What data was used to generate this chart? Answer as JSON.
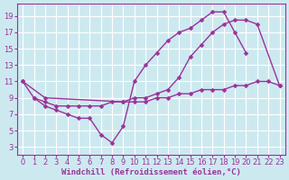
{
  "background_color": "#cde9f0",
  "grid_color": "#ffffff",
  "line_color": "#993399",
  "marker": "D",
  "markersize": 2.5,
  "linewidth": 1.0,
  "xlabel": "Windchill (Refroidissement éolien,°C)",
  "xlabel_fontsize": 6.5,
  "tick_fontsize": 6.0,
  "xlim": [
    -0.5,
    23.5
  ],
  "ylim": [
    2,
    20.5
  ],
  "yticks": [
    3,
    5,
    7,
    9,
    11,
    13,
    15,
    17,
    19
  ],
  "xticks": [
    0,
    1,
    2,
    3,
    4,
    5,
    6,
    7,
    8,
    9,
    10,
    11,
    12,
    13,
    14,
    15,
    16,
    17,
    18,
    19,
    20,
    21,
    22,
    23
  ],
  "series": [
    {
      "x": [
        0,
        1,
        2,
        3,
        4,
        5,
        6,
        7,
        8,
        9,
        10,
        11,
        12,
        13,
        14,
        15,
        16,
        17,
        18,
        19,
        20
      ],
      "y": [
        11,
        9,
        8,
        7.5,
        7,
        6.5,
        6.5,
        4.5,
        3.5,
        5.5,
        11,
        13,
        14.5,
        16,
        17,
        17.5,
        18.5,
        19.5,
        19.5,
        17,
        14.5
      ]
    },
    {
      "x": [
        0,
        2,
        9,
        10,
        11,
        12,
        13,
        14,
        15,
        16,
        17,
        18,
        19,
        20,
        21,
        23
      ],
      "y": [
        11,
        9,
        8.5,
        9,
        9,
        9.5,
        10,
        11.5,
        14,
        15.5,
        17,
        18,
        18.5,
        18.5,
        18,
        10.5
      ]
    },
    {
      "x": [
        1,
        2,
        3,
        4,
        5,
        6,
        7,
        8,
        9,
        10,
        11,
        12,
        13,
        14,
        15,
        16,
        17,
        18,
        19,
        20,
        21,
        22,
        23
      ],
      "y": [
        9,
        8.5,
        8,
        8,
        8,
        8,
        8,
        8.5,
        8.5,
        8.5,
        8.5,
        9,
        9,
        9.5,
        9.5,
        10,
        10,
        10,
        10.5,
        10.5,
        11,
        11,
        10.5
      ]
    }
  ]
}
